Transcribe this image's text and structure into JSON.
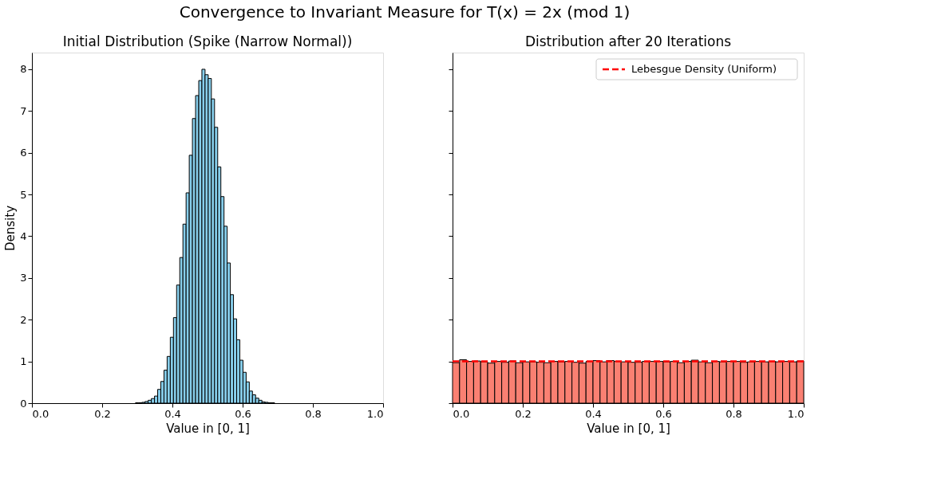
{
  "chart_data": [
    {
      "type": "histogram",
      "title": "Initial Distribution (Spike (Narrow Normal))",
      "annotations": [
        "Convergence to Invariant Measure for T(x) = 2x (mod 1)"
      ],
      "xlabel": "Value in [0, 1]",
      "ylabel": "Density",
      "bins": [
        0.295,
        0.304,
        0.313,
        0.322,
        0.331,
        0.34,
        0.349,
        0.358,
        0.367,
        0.376,
        0.385,
        0.394,
        0.403,
        0.412,
        0.421,
        0.43,
        0.439,
        0.448,
        0.457,
        0.466,
        0.475,
        0.484,
        0.493,
        0.502,
        0.511,
        0.52,
        0.529,
        0.538,
        0.547,
        0.556,
        0.565,
        0.574,
        0.583,
        0.592,
        0.601,
        0.61,
        0.619,
        0.628,
        0.637,
        0.646,
        0.655,
        0.664,
        0.673,
        0.682,
        0.691
      ],
      "values": [
        0.01,
        0.01,
        0.02,
        0.04,
        0.07,
        0.11,
        0.17,
        0.33,
        0.52,
        0.79,
        1.12,
        1.58,
        2.05,
        2.83,
        3.49,
        4.29,
        5.04,
        5.94,
        6.82,
        7.37,
        7.73,
        8.0,
        7.87,
        7.78,
        7.29,
        6.61,
        5.66,
        4.95,
        4.24,
        3.36,
        2.6,
        2.02,
        1.52,
        1.03,
        0.74,
        0.51,
        0.29,
        0.2,
        0.12,
        0.07,
        0.03,
        0.02,
        0.01,
        0.01
      ],
      "color": "#87ceeb",
      "xlim": [
        0,
        1
      ],
      "ylim": [
        0,
        8.4
      ],
      "xticks": [
        {
          "value": 0,
          "label": "0.0"
        },
        {
          "value": 0.2,
          "label": "0.2"
        },
        {
          "value": 0.4,
          "label": "0.4"
        },
        {
          "value": 0.6,
          "label": "0.6"
        },
        {
          "value": 0.8,
          "label": "0.8"
        },
        {
          "value": 1,
          "label": "1.0"
        }
      ],
      "yticks": [
        0,
        1,
        2,
        3,
        4,
        5,
        6,
        7,
        8
      ],
      "grid": false
    },
    {
      "type": "histogram",
      "title": "Distribution after 20 Iterations",
      "xlabel": "Value in [0, 1]",
      "bins": [
        0,
        0.02,
        0.04,
        0.06,
        0.08,
        0.1,
        0.12,
        0.14,
        0.16,
        0.18,
        0.2,
        0.22,
        0.24,
        0.26,
        0.28,
        0.3,
        0.32,
        0.34,
        0.36,
        0.38,
        0.4,
        0.42,
        0.44,
        0.46,
        0.48,
        0.5,
        0.52,
        0.54,
        0.56,
        0.58,
        0.6,
        0.62,
        0.64,
        0.66,
        0.68,
        0.7,
        0.72,
        0.74,
        0.76,
        0.78,
        0.8,
        0.82,
        0.84,
        0.86,
        0.88,
        0.9,
        0.92,
        0.94,
        0.96,
        0.98,
        1
      ],
      "values": [
        0.97,
        1.04,
        1.0,
        1.01,
        0.99,
        0.96,
        1.0,
        0.98,
        1.01,
        0.97,
        0.99,
        0.99,
        0.98,
        0.97,
        1.0,
        0.99,
        1.0,
        0.98,
        0.96,
        1.0,
        1.02,
        0.99,
        1.02,
        1.0,
        0.99,
        0.98,
        0.98,
        1.0,
        1.0,
        1.0,
        0.99,
        1.0,
        0.97,
        1.0,
        1.03,
        0.99,
        0.97,
        1.0,
        0.99,
        1.0,
        1.0,
        0.98,
        0.99,
        1.0,
        0.99,
        1.0,
        0.99,
        1.0,
        0.99,
        1.01
      ],
      "color": "#fa8072",
      "xlim": [
        0,
        1
      ],
      "ylim": [
        0,
        8.4
      ],
      "xticks": [
        {
          "value": 0,
          "label": "0.0"
        },
        {
          "value": 0.2,
          "label": "0.2"
        },
        {
          "value": 0.4,
          "label": "0.4"
        },
        {
          "value": 0.6,
          "label": "0.6"
        },
        {
          "value": 0.8,
          "label": "0.8"
        },
        {
          "value": 1,
          "label": "1.0"
        }
      ],
      "yticks": [
        0,
        1,
        2,
        3,
        4,
        5,
        6,
        7,
        8
      ],
      "tick_labels": "x",
      "ref_lines": [
        {
          "axis": "y",
          "value": 1,
          "label": "Lebesgue Density (Uniform)",
          "color": "#ff0000",
          "line_style": "dashed"
        }
      ],
      "grid": false,
      "legend": "top right"
    }
  ]
}
